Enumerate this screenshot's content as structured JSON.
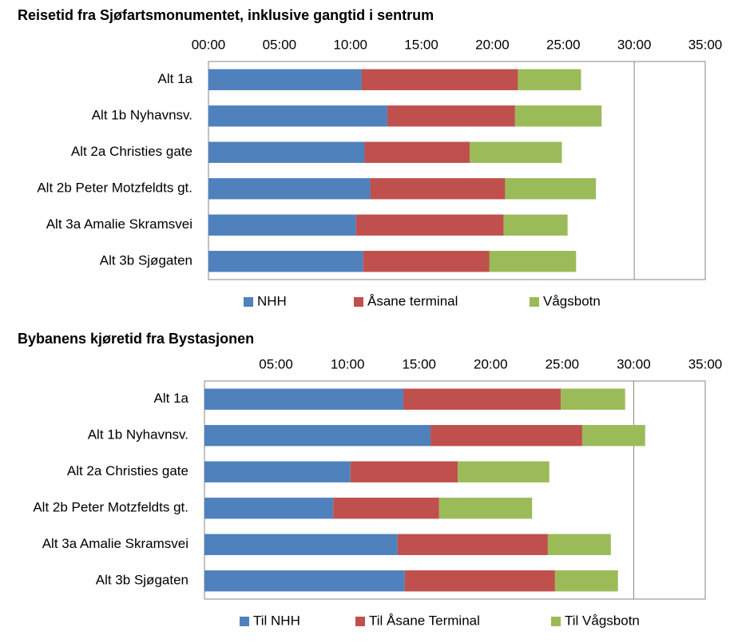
{
  "chart_data": [
    {
      "type": "stacked_barh",
      "title": "Reisetid fra Sjøfartsmonumentet,  inklusive gangtid i sentrum",
      "categories": [
        "Alt 1a",
        "Alt 1b Nyhavnsv.",
        "Alt 2a Christies gate",
        "Alt 2b Peter Motzfeldts gt.",
        "Alt 3a Amalie Skramsvei",
        "Alt 3b Sjøgaten"
      ],
      "series": [
        {
          "name": "NHH",
          "color": "#4f81bd",
          "values": [
            10.8,
            12.6,
            11.0,
            11.4,
            10.4,
            10.9
          ]
        },
        {
          "name": "Åsane terminal",
          "color": "#c0504d",
          "values": [
            11.0,
            9.0,
            7.4,
            9.5,
            10.4,
            8.9
          ]
        },
        {
          "name": "Vågsbotn",
          "color": "#9bbb59",
          "values": [
            4.45,
            6.1,
            6.5,
            6.4,
            4.5,
            6.1
          ]
        }
      ],
      "xlim": [
        0,
        35
      ],
      "xticks": [
        {
          "value": 0,
          "label": "00:00"
        },
        {
          "value": 5,
          "label": "05:00"
        },
        {
          "value": 10,
          "label": "10:00"
        },
        {
          "value": 15,
          "label": "15:00"
        },
        {
          "value": 20,
          "label": "20:00"
        },
        {
          "value": 25,
          "label": "25:00"
        },
        {
          "value": 30,
          "label": "30:00"
        },
        {
          "value": 35,
          "label": "35:00"
        }
      ],
      "grid_x": [
        30
      ],
      "legend": "bottom"
    },
    {
      "type": "stacked_barh",
      "title": "Bybanens kjøretid fra Bystasjonen",
      "categories": [
        "Alt 1a",
        "Alt 1b Nyhavnsv.",
        "Alt 2a Christies gate",
        "Alt 2b Peter Motzfeldts gt.",
        "Alt 3a Amalie Skramsvei",
        "Alt 3b Sjøgaten"
      ],
      "series": [
        {
          "name": "Til NHH",
          "color": "#4f81bd",
          "values": [
            13.9,
            15.8,
            10.2,
            9.0,
            13.5,
            14.0
          ]
        },
        {
          "name": "Til Åsane Terminal",
          "color": "#c0504d",
          "values": [
            11.0,
            10.6,
            7.5,
            7.4,
            10.5,
            10.5
          ]
        },
        {
          "name": "Til Vågsbotn",
          "color": "#9bbb59",
          "values": [
            4.5,
            4.4,
            6.4,
            6.5,
            4.4,
            4.4
          ]
        }
      ],
      "xlim": [
        0,
        35
      ],
      "xticks": [
        {
          "value": 5,
          "label": "05:00"
        },
        {
          "value": 10,
          "label": "10:00"
        },
        {
          "value": 15,
          "label": "15:00"
        },
        {
          "value": 20,
          "label": "20:00"
        },
        {
          "value": 25,
          "label": "25:00"
        },
        {
          "value": 30,
          "label": "30:00"
        },
        {
          "value": 35,
          "label": "35:00"
        }
      ],
      "grid_x": [
        30
      ],
      "legend": "bottom"
    }
  ]
}
